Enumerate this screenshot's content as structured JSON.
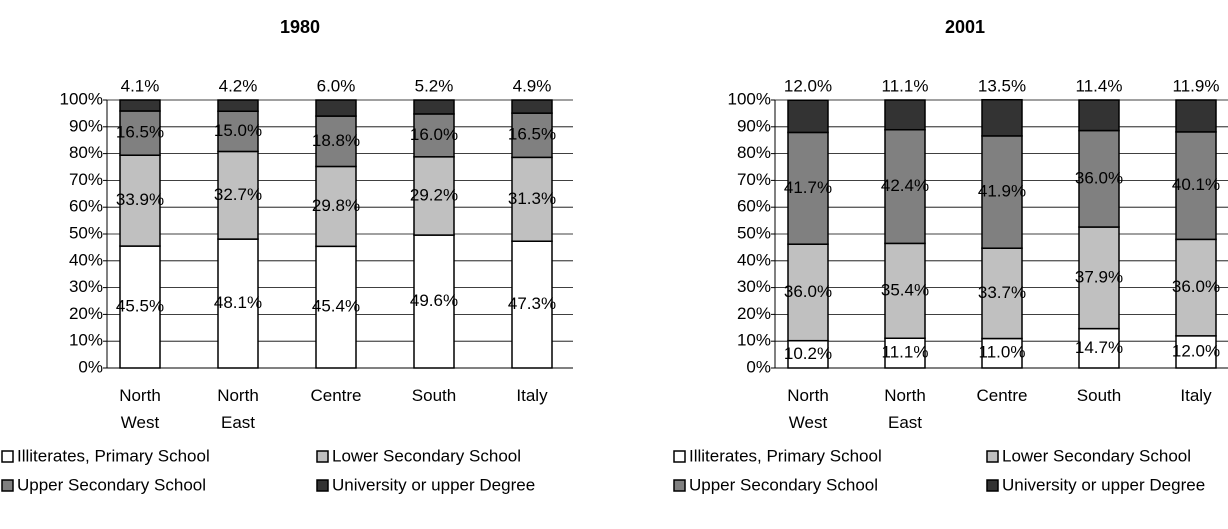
{
  "chart_data": [
    {
      "type": "stacked-bar",
      "title": "1980",
      "categories": [
        "North West",
        "North East",
        "Centre",
        "South",
        "Italy"
      ],
      "ylim": [
        0,
        100
      ],
      "yticks": [
        {
          "value": 0,
          "label": "0%"
        },
        {
          "value": 10,
          "label": "10%"
        },
        {
          "value": 20,
          "label": "20%"
        },
        {
          "value": 30,
          "label": "30%"
        },
        {
          "value": 40,
          "label": "40%"
        },
        {
          "value": 50,
          "label": "50%"
        },
        {
          "value": 60,
          "label": "60%"
        },
        {
          "value": 70,
          "label": "70%"
        },
        {
          "value": 80,
          "label": "80%"
        },
        {
          "value": 90,
          "label": "90%"
        },
        {
          "value": 100,
          "label": "100%"
        }
      ],
      "grid": true,
      "series": [
        {
          "name": "Illiterates, Primary School",
          "color": "#ffffff",
          "values": [
            45.5,
            48.1,
            45.4,
            49.6,
            47.3
          ],
          "value_labels": [
            "45.5%",
            "48.1%",
            "45.4%",
            "49.6%",
            "47.3%"
          ]
        },
        {
          "name": "Lower Secondary School",
          "color": "#c0c0c0",
          "values": [
            33.9,
            32.7,
            29.8,
            29.2,
            31.3
          ],
          "value_labels": [
            "33.9%",
            "32.7%",
            "29.8%",
            "29.2%",
            "31.3%"
          ]
        },
        {
          "name": "Upper Secondary School",
          "color": "#808080",
          "values": [
            16.5,
            15.0,
            18.8,
            16.0,
            16.5
          ],
          "value_labels": [
            "16.5%",
            "15.0%",
            "18.8%",
            "16.0%",
            "16.5%"
          ]
        },
        {
          "name": "University or upper Degree",
          "color": "#333333",
          "values": [
            4.1,
            4.2,
            6.0,
            5.2,
            4.9
          ],
          "value_labels": [
            "4.1%",
            "4.2%",
            "6.0%",
            "5.2%",
            "4.9%"
          ]
        }
      ]
    },
    {
      "type": "stacked-bar",
      "title": "2001",
      "categories": [
        "North West",
        "North East",
        "Centre",
        "South",
        "Italy"
      ],
      "ylim": [
        0,
        100
      ],
      "yticks": [
        {
          "value": 0,
          "label": "0%"
        },
        {
          "value": 10,
          "label": "10%"
        },
        {
          "value": 20,
          "label": "20%"
        },
        {
          "value": 30,
          "label": "30%"
        },
        {
          "value": 40,
          "label": "40%"
        },
        {
          "value": 50,
          "label": "50%"
        },
        {
          "value": 60,
          "label": "60%"
        },
        {
          "value": 70,
          "label": "70%"
        },
        {
          "value": 80,
          "label": "80%"
        },
        {
          "value": 90,
          "label": "90%"
        },
        {
          "value": 100,
          "label": "100%"
        }
      ],
      "grid": true,
      "series": [
        {
          "name": "Illiterates, Primary School",
          "color": "#ffffff",
          "values": [
            10.2,
            11.1,
            11.0,
            14.7,
            12.0
          ],
          "value_labels": [
            "10.2%",
            "11.1%",
            "11.0%",
            "14.7%",
            "12.0%"
          ]
        },
        {
          "name": "Lower Secondary School",
          "color": "#c0c0c0",
          "values": [
            36.0,
            35.4,
            33.7,
            37.9,
            36.0
          ],
          "value_labels": [
            "36.0%",
            "35.4%",
            "33.7%",
            "37.9%",
            "36.0%"
          ]
        },
        {
          "name": "Upper Secondary School",
          "color": "#808080",
          "values": [
            41.7,
            42.4,
            41.9,
            36.0,
            40.1
          ],
          "value_labels": [
            "41.7%",
            "42.4%",
            "41.9%",
            "36.0%",
            "40.1%"
          ]
        },
        {
          "name": "University or upper Degree",
          "color": "#333333",
          "values": [
            12.0,
            11.1,
            13.5,
            11.4,
            11.9
          ],
          "value_labels": [
            "12.0%",
            "11.1%",
            "13.5%",
            "11.4%",
            "11.9%"
          ]
        }
      ]
    }
  ]
}
